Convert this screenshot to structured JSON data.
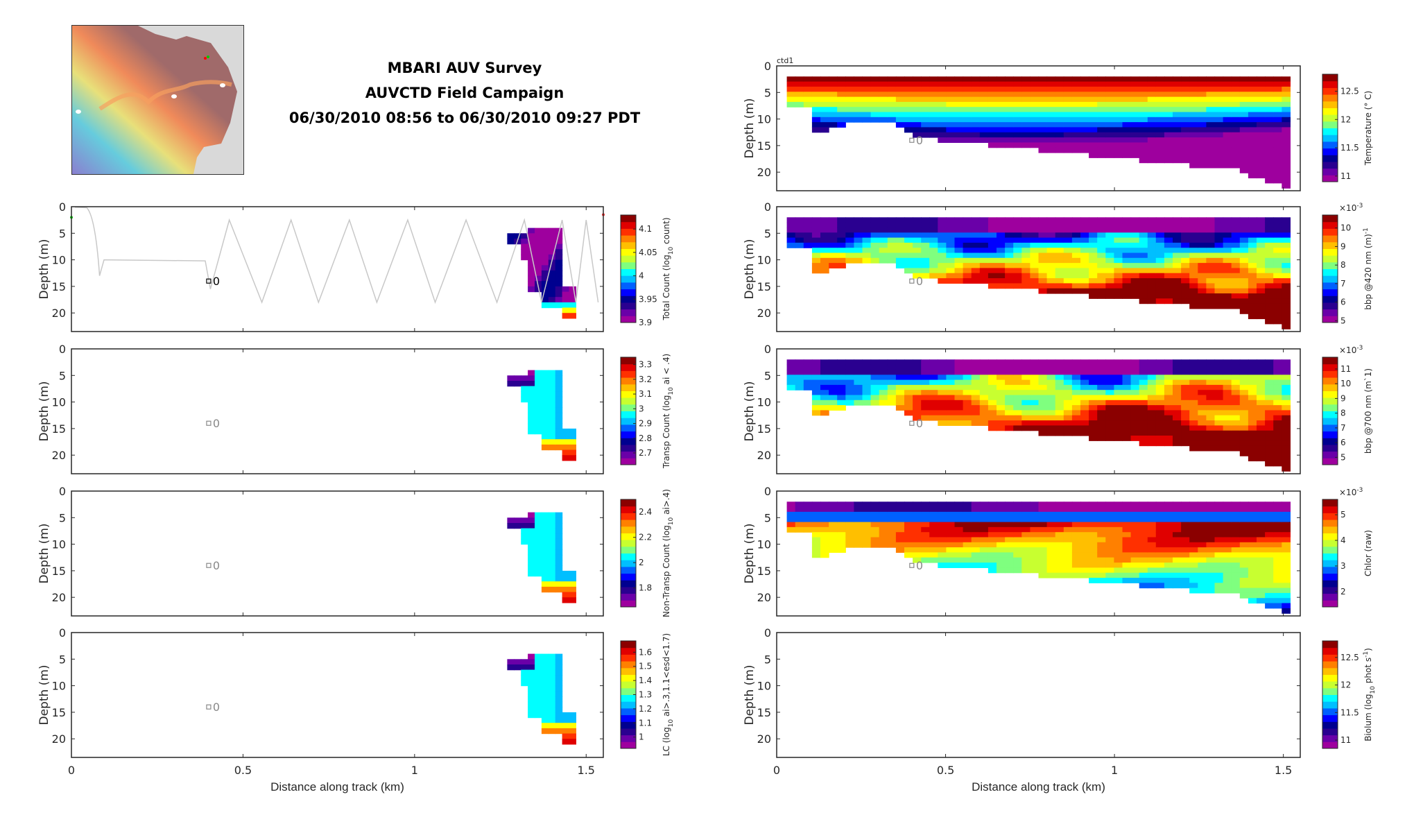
{
  "header": {
    "line1": "MBARI AUV Survey",
    "line2": "AUVCTD Field Campaign",
    "line3": "06/30/2010 08:56 to 06/30/2010 09:27 PDT"
  },
  "map": {
    "colors": {
      "land": "#d9d9d9",
      "shelf": "#a06a6a"
    },
    "markers": [
      "start-green",
      "end-red"
    ]
  },
  "colormap": [
    "#9e009e",
    "#6a00a8",
    "#2a0090",
    "#00008f",
    "#0000ff",
    "#0060ff",
    "#00bfff",
    "#00ffff",
    "#7fff7f",
    "#c8ff30",
    "#ffff00",
    "#ffbf00",
    "#ff8000",
    "#ff3000",
    "#e00000",
    "#8b0000"
  ],
  "shared": {
    "xlabel": "Distance along track (km)",
    "ylabel": "Depth (m)",
    "xticks": [
      "0",
      "0.5",
      "1",
      "1.5"
    ],
    "yticks": [
      "0",
      "5",
      "10",
      "15",
      "20"
    ],
    "marker_label": "0",
    "ctd_label": "ctd1",
    "exp_label": "×10",
    "exp_sup": "-3"
  },
  "chart_data": [
    {
      "type": "heatmap",
      "id": "total-count",
      "colorbar_label": "Total Count (log",
      "colorbar_sub": "10",
      "colorbar_tail": " count)",
      "clim": [
        3.9,
        4.13
      ],
      "cticks": [
        "3.9",
        "3.95",
        "4",
        "4.05",
        "4.1"
      ],
      "ctick_values": [
        3.9,
        3.95,
        4,
        4.05,
        4.1
      ],
      "xlim": [
        0,
        1.55
      ],
      "ylim": [
        0,
        23.5
      ],
      "x_extent": [
        1.27,
        1.47
      ],
      "y_extent": [
        4,
        21
      ],
      "track_profile": true
    },
    {
      "type": "heatmap",
      "id": "transp-count",
      "colorbar_label": "Transp Count (log",
      "colorbar_sub": "10",
      "colorbar_tail": " ai < .4)",
      "clim": [
        2.62,
        3.35
      ],
      "cticks": [
        "2.7",
        "2.8",
        "2.9",
        "3",
        "3.1",
        "3.2",
        "3.3"
      ],
      "ctick_values": [
        2.7,
        2.8,
        2.9,
        3,
        3.1,
        3.2,
        3.3
      ],
      "xlim": [
        0,
        1.55
      ],
      "ylim": [
        0,
        23.5
      ],
      "x_extent": [
        1.27,
        1.47
      ],
      "y_extent": [
        4,
        21
      ]
    },
    {
      "type": "heatmap",
      "id": "nontransp-count",
      "colorbar_label": "Non-Transp Count (log",
      "colorbar_sub": "10",
      "colorbar_tail": " ai>.4)",
      "clim": [
        1.65,
        2.5
      ],
      "cticks": [
        "1.8",
        "2",
        "2.2",
        "2.4"
      ],
      "ctick_values": [
        1.8,
        2,
        2.2,
        2.4
      ],
      "xlim": [
        0,
        1.55
      ],
      "ylim": [
        0,
        23.5
      ],
      "x_extent": [
        1.27,
        1.47
      ],
      "y_extent": [
        4,
        21
      ]
    },
    {
      "type": "heatmap",
      "id": "lc",
      "colorbar_label": "LC (log",
      "colorbar_sub": "10",
      "colorbar_tail": " ai>.3,1.1<esd<1.7)",
      "clim": [
        0.92,
        1.68
      ],
      "cticks": [
        "1",
        "1.1",
        "1.2",
        "1.3",
        "1.4",
        "1.5",
        "1.6"
      ],
      "ctick_values": [
        1,
        1.1,
        1.2,
        1.3,
        1.4,
        1.5,
        1.6
      ],
      "xlim": [
        0,
        1.55
      ],
      "ylim": [
        0,
        23.5
      ],
      "x_extent": [
        1.27,
        1.47
      ],
      "y_extent": [
        4,
        21
      ]
    },
    {
      "type": "heatmap",
      "id": "temperature",
      "colorbar_label": "Temperature (° C)",
      "colorbar_sub": "",
      "colorbar_tail": "",
      "clim": [
        10.9,
        12.8
      ],
      "cticks": [
        "11",
        "11.5",
        "12",
        "12.5"
      ],
      "ctick_values": [
        11,
        11.5,
        12,
        12.5
      ],
      "xlim": [
        0,
        1.55
      ],
      "ylim": [
        0,
        23.5
      ],
      "x_extent": [
        0.03,
        1.52
      ],
      "y_extent": [
        2,
        23
      ],
      "pattern": "temperature"
    },
    {
      "type": "heatmap",
      "id": "bbp420",
      "colorbar_label": "bbp @420 nm (m",
      "colorbar_sub": "",
      "colorbar_tail": ")",
      "colorbar_sup": "-1",
      "exponent": true,
      "clim": [
        4.9,
        10.7
      ],
      "cticks": [
        "5",
        "6",
        "7",
        "8",
        "9",
        "10"
      ],
      "ctick_values": [
        5,
        6,
        7,
        8,
        9,
        10
      ],
      "xlim": [
        0,
        1.55
      ],
      "ylim": [
        0,
        23.5
      ],
      "x_extent": [
        0.03,
        1.52
      ],
      "y_extent": [
        2,
        23
      ],
      "pattern": "bbp420"
    },
    {
      "type": "heatmap",
      "id": "bbp700",
      "colorbar_label": "bbp @700 nm (m`1)",
      "colorbar_sub": "",
      "colorbar_tail": "",
      "exponent": true,
      "clim": [
        4.5,
        11.8
      ],
      "cticks": [
        "5",
        "6",
        "7",
        "8",
        "9",
        "10",
        "11"
      ],
      "ctick_values": [
        5,
        6,
        7,
        8,
        9,
        10,
        11
      ],
      "xlim": [
        0,
        1.55
      ],
      "ylim": [
        0,
        23.5
      ],
      "x_extent": [
        0.03,
        1.52
      ],
      "y_extent": [
        2,
        23
      ],
      "pattern": "bbp700"
    },
    {
      "type": "heatmap",
      "id": "chlor",
      "colorbar_label": "Chlor (raw)",
      "colorbar_sub": "",
      "colorbar_tail": "",
      "exponent": true,
      "clim": [
        1.4,
        5.6
      ],
      "cticks": [
        "2",
        "3",
        "4",
        "5"
      ],
      "ctick_values": [
        2,
        3,
        4,
        5
      ],
      "xlim": [
        0,
        1.55
      ],
      "ylim": [
        0,
        23.5
      ],
      "x_extent": [
        0.03,
        1.52
      ],
      "y_extent": [
        2,
        23
      ],
      "pattern": "chlor"
    },
    {
      "type": "heatmap",
      "id": "biolum",
      "colorbar_label": "Biolum (log",
      "colorbar_sub": "10",
      "colorbar_tail": " phot s",
      "colorbar_sup": "-1",
      "colorbar_end": ")",
      "clim": [
        10.85,
        12.8
      ],
      "cticks": [
        "11",
        "11.5",
        "12",
        "12.5"
      ],
      "ctick_values": [
        11,
        11.5,
        12,
        12.5
      ],
      "xlim": [
        0,
        1.55
      ],
      "ylim": [
        0,
        23.5
      ],
      "empty": true
    }
  ]
}
